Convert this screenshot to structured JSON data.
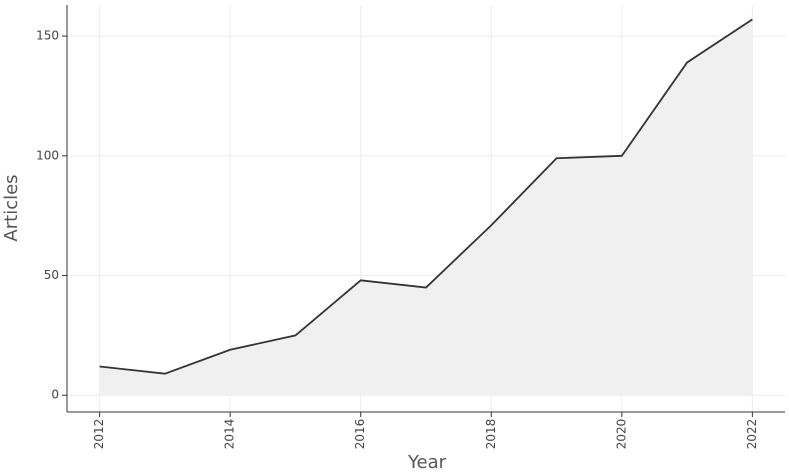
{
  "chart_data": {
    "type": "area",
    "x_label": "Year",
    "y_label": "Articles",
    "x": [
      2012,
      2013,
      2014,
      2015,
      2016,
      2017,
      2018,
      2019,
      2020,
      2021,
      2022
    ],
    "values": [
      12,
      9,
      19,
      25,
      48,
      45,
      71,
      99,
      100,
      139,
      157
    ],
    "color": "#333333",
    "fill": "#f0f0f0",
    "xlim": [
      2011.5,
      2022.5
    ],
    "xticks": [
      2012,
      2014,
      2016,
      2018,
      2020,
      2022
    ],
    "ylim": [
      -7,
      163
    ],
    "yticks": [
      0,
      50,
      100,
      150
    ],
    "grid": true
  }
}
